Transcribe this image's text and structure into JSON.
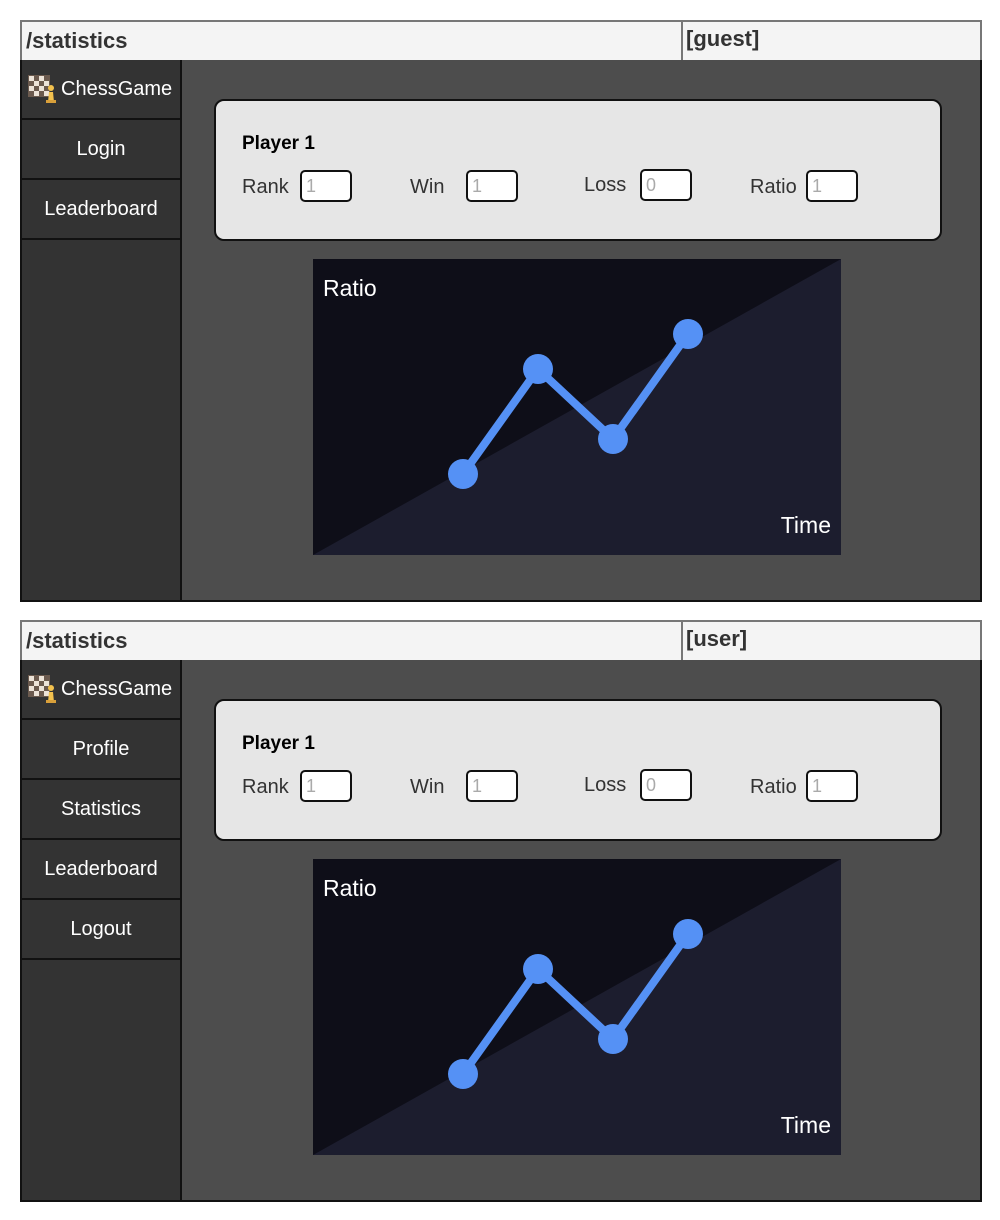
{
  "colors": {
    "topbar_bg": "#f4f4f4",
    "sidebar_bg": "#333333",
    "main_bg": "#4d4d4d",
    "card_bg": "#e6e6e6",
    "chart_bg_dark": "#0e0e18",
    "chart_bg_light": "#1c1d2e",
    "line": "#5591f5"
  },
  "screens": [
    {
      "route": "/statistics",
      "role": "[guest]",
      "brand": "ChessGame",
      "nav": [
        "Login",
        "Leaderboard"
      ],
      "player": {
        "name": "Player 1",
        "rank_label": "Rank",
        "rank_placeholder": "1",
        "win_label": "Win",
        "win_placeholder": "1",
        "loss_label": "Loss",
        "loss_placeholder": "0",
        "ratio_label": "Ratio",
        "ratio_placeholder": "1"
      },
      "chart_data": {
        "type": "line",
        "xlabel": "Time",
        "ylabel": "Ratio",
        "series": [
          {
            "values": [
              1,
              4,
              2,
              5
            ]
          }
        ]
      }
    },
    {
      "route": "/statistics",
      "role": "[user]",
      "brand": "ChessGame",
      "nav": [
        "Profile",
        "Statistics",
        "Leaderboard",
        "Logout"
      ],
      "player": {
        "name": "Player 1",
        "rank_label": "Rank",
        "rank_placeholder": "1",
        "win_label": "Win",
        "win_placeholder": "1",
        "loss_label": "Loss",
        "loss_placeholder": "0",
        "ratio_label": "Ratio",
        "ratio_placeholder": "1"
      },
      "chart_data": {
        "type": "line",
        "xlabel": "Time",
        "ylabel": "Ratio",
        "series": [
          {
            "values": [
              1,
              4,
              2,
              5
            ]
          }
        ]
      }
    }
  ]
}
